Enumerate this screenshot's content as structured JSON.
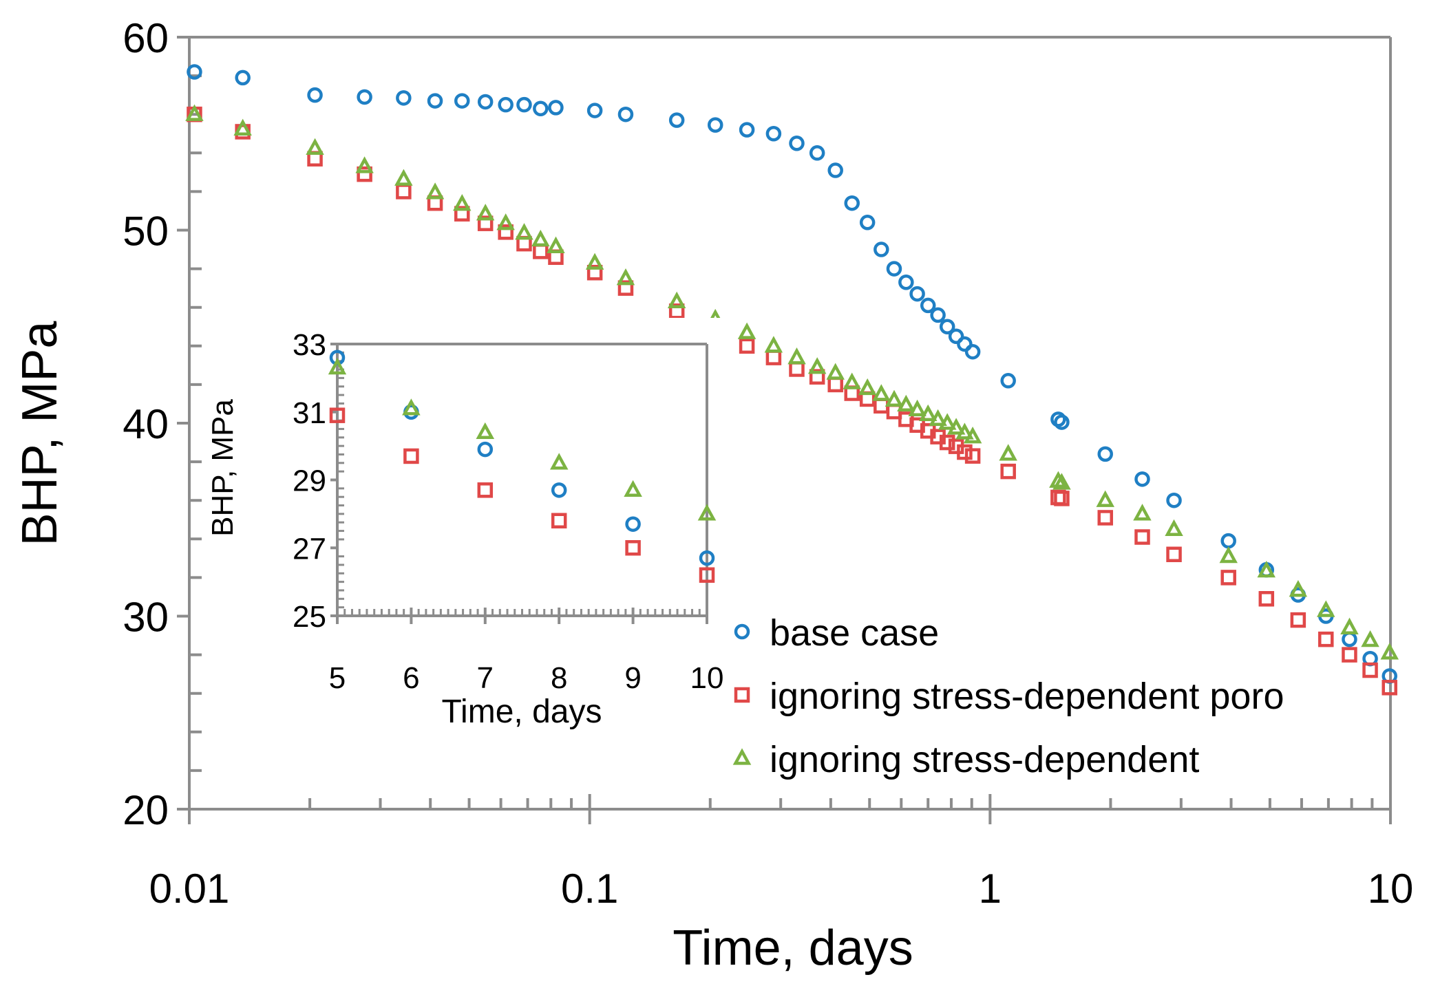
{
  "chart_data": [
    {
      "type": "scatter",
      "name": "main",
      "xscale": "log",
      "xlim": [
        0.01,
        10
      ],
      "ylim": [
        20,
        60
      ],
      "xlabel": "Time, days",
      "ylabel": "BHP, MPa",
      "xticks": [
        0.01,
        0.1,
        1,
        10
      ],
      "xtick_labels": [
        "0.01",
        "0.1",
        "1",
        "10"
      ],
      "yticks": [
        20,
        30,
        40,
        50,
        60
      ],
      "ytick_labels": [
        "20",
        "30",
        "40",
        "50",
        "60"
      ],
      "legend": [
        "base case",
        "ignoring stress-dependent poro",
        "ignoring stress-dependent"
      ],
      "series": [
        {
          "name": "base case",
          "marker": "circle",
          "color": "#1f7fc4",
          "x": [
            0.0103,
            0.0136,
            0.0206,
            0.0274,
            0.0343,
            0.0411,
            0.048,
            0.0549,
            0.0617,
            0.0686,
            0.0754,
            0.0823,
            0.103,
            0.123,
            0.165,
            0.206,
            0.247,
            0.288,
            0.329,
            0.37,
            0.411,
            0.452,
            0.494,
            0.535,
            0.576,
            0.617,
            0.658,
            0.7,
            0.741,
            0.782,
            0.823,
            0.864,
            0.905,
            1.11,
            1.48,
            1.51,
            1.94,
            2.4,
            2.88,
            3.94,
            4.9,
            5.88,
            6.9,
            7.9,
            8.9,
            9.95
          ],
          "y": [
            58.2,
            57.9,
            57.0,
            56.9,
            56.85,
            56.7,
            56.7,
            56.65,
            56.5,
            56.5,
            56.3,
            56.35,
            56.2,
            56.0,
            55.7,
            55.45,
            55.2,
            55.0,
            54.5,
            54.0,
            53.1,
            51.4,
            50.4,
            49.0,
            48.0,
            47.3,
            46.7,
            46.1,
            45.6,
            45.0,
            44.5,
            44.1,
            43.7,
            42.2,
            40.2,
            40.05,
            38.4,
            37.1,
            36.0,
            33.9,
            32.4,
            31.1,
            30.0,
            28.8,
            27.8,
            26.9
          ]
        },
        {
          "name": "ignoring stress-dependent poro",
          "marker": "square",
          "color": "#e04848",
          "x": [
            0.0103,
            0.0136,
            0.0206,
            0.0274,
            0.0343,
            0.0411,
            0.048,
            0.0549,
            0.0617,
            0.0686,
            0.0754,
            0.0823,
            0.103,
            0.123,
            0.165,
            0.206,
            0.247,
            0.288,
            0.329,
            0.37,
            0.411,
            0.452,
            0.494,
            0.535,
            0.576,
            0.617,
            0.658,
            0.7,
            0.741,
            0.782,
            0.823,
            0.864,
            0.905,
            1.11,
            1.48,
            1.51,
            1.94,
            2.4,
            2.88,
            3.94,
            4.9,
            5.88,
            6.9,
            7.9,
            8.9,
            9.95
          ],
          "y": [
            56.0,
            55.1,
            53.7,
            52.9,
            52.0,
            51.4,
            50.85,
            50.35,
            49.9,
            49.3,
            48.9,
            48.6,
            47.8,
            47.0,
            45.8,
            44.9,
            44.0,
            43.4,
            42.8,
            42.4,
            42.0,
            41.55,
            41.25,
            40.9,
            40.6,
            40.2,
            39.9,
            39.6,
            39.3,
            39.0,
            38.8,
            38.5,
            38.3,
            37.5,
            36.15,
            36.1,
            35.1,
            34.1,
            33.2,
            32.0,
            30.9,
            29.8,
            28.8,
            28.0,
            27.2,
            26.3
          ]
        },
        {
          "name": "ignoring stress-dependent",
          "marker": "triangle",
          "color": "#7cb342",
          "x": [
            0.0103,
            0.0136,
            0.0206,
            0.0274,
            0.0343,
            0.0411,
            0.048,
            0.0549,
            0.0617,
            0.0686,
            0.0754,
            0.0823,
            0.103,
            0.123,
            0.165,
            0.206,
            0.247,
            0.288,
            0.329,
            0.37,
            0.411,
            0.452,
            0.494,
            0.535,
            0.576,
            0.617,
            0.658,
            0.7,
            0.741,
            0.782,
            0.823,
            0.864,
            0.905,
            1.11,
            1.48,
            1.51,
            1.94,
            2.4,
            2.88,
            3.94,
            4.9,
            5.88,
            6.9,
            7.9,
            8.9,
            9.95
          ],
          "y": [
            56.0,
            55.25,
            54.25,
            53.3,
            52.65,
            51.95,
            51.35,
            50.85,
            50.35,
            49.85,
            49.5,
            49.15,
            48.3,
            47.5,
            46.3,
            45.4,
            44.7,
            44.0,
            43.4,
            42.9,
            42.6,
            42.1,
            41.8,
            41.5,
            41.2,
            40.95,
            40.7,
            40.45,
            40.2,
            40.0,
            39.75,
            39.5,
            39.3,
            38.4,
            37.0,
            36.9,
            36.0,
            35.3,
            34.5,
            33.1,
            32.35,
            31.35,
            30.3,
            29.4,
            28.75,
            28.1
          ]
        }
      ]
    },
    {
      "type": "scatter",
      "name": "inset",
      "xscale": "linear",
      "xlim": [
        5,
        10
      ],
      "ylim": [
        25,
        33
      ],
      "xlabel": "Time, days",
      "ylabel": "BHP, MPa",
      "xticks": [
        5,
        6,
        7,
        8,
        9,
        10
      ],
      "xtick_labels": [
        "5",
        "6",
        "7",
        "8",
        "9",
        "10"
      ],
      "yticks": [
        25,
        27,
        29,
        31,
        33
      ],
      "ytick_labels": [
        "25",
        "27",
        "29",
        "31",
        "33"
      ],
      "series": [
        {
          "name": "base case",
          "marker": "circle",
          "color": "#1f7fc4",
          "x": [
            5,
            6,
            7,
            8,
            9,
            10
          ],
          "y": [
            32.6,
            31.0,
            29.9,
            28.7,
            27.7,
            26.7
          ]
        },
        {
          "name": "ignoring stress-dependent poro",
          "marker": "square",
          "color": "#e04848",
          "x": [
            5,
            6,
            7,
            8,
            9,
            10
          ],
          "y": [
            30.9,
            29.7,
            28.7,
            27.8,
            27.0,
            26.2
          ]
        },
        {
          "name": "ignoring stress-dependent",
          "marker": "triangle",
          "color": "#7cb342",
          "x": [
            5,
            6,
            7,
            8,
            9,
            10
          ],
          "y": [
            32.3,
            31.1,
            30.4,
            29.5,
            28.7,
            28.0
          ]
        }
      ]
    }
  ]
}
